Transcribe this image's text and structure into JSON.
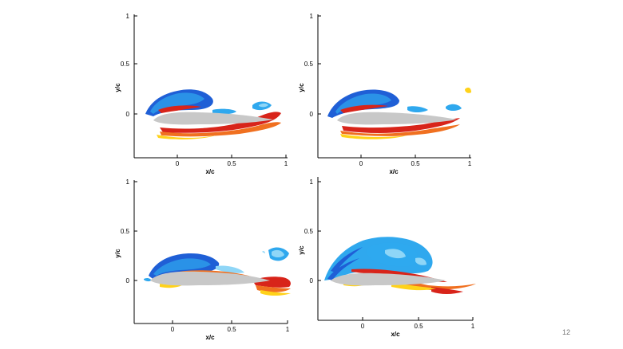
{
  "slide": {
    "page_number": "12",
    "panels": [
      {
        "id": "top-left",
        "xlabel": "x/c",
        "ylabel": "y/c",
        "xticks": [
          "0",
          "0.5",
          "1"
        ],
        "yticks": [
          "1",
          "0.5",
          "0"
        ],
        "contour_levels": "vorticity field, blue = negative, red = positive"
      },
      {
        "id": "top-right",
        "xlabel": "x/c",
        "ylabel": "y/c",
        "xticks": [
          "0",
          "0.5",
          "1"
        ],
        "yticks": [
          "1",
          "0.5",
          "0"
        ]
      },
      {
        "id": "bottom-left",
        "xlabel": "x/c",
        "ylabel": "y/c",
        "xticks": [
          "0",
          "0.5",
          "1"
        ],
        "yticks": [
          "1",
          "0.5",
          "0"
        ]
      },
      {
        "id": "bottom-right",
        "xlabel": "x/c",
        "ylabel": "y/c",
        "xticks": [
          "0",
          "0.5",
          "1"
        ],
        "yticks": [
          "1",
          "0.5",
          "0"
        ]
      }
    ],
    "colors": {
      "axis": "#000000",
      "airfoil": "#c8c8c8",
      "blue_dark": "#1f5fd6",
      "blue_mid": "#2fa8ee",
      "blue_light": "#8fd6f7",
      "red_dark": "#d8241a",
      "orange": "#f07020",
      "yellow": "#ffd21a"
    }
  }
}
